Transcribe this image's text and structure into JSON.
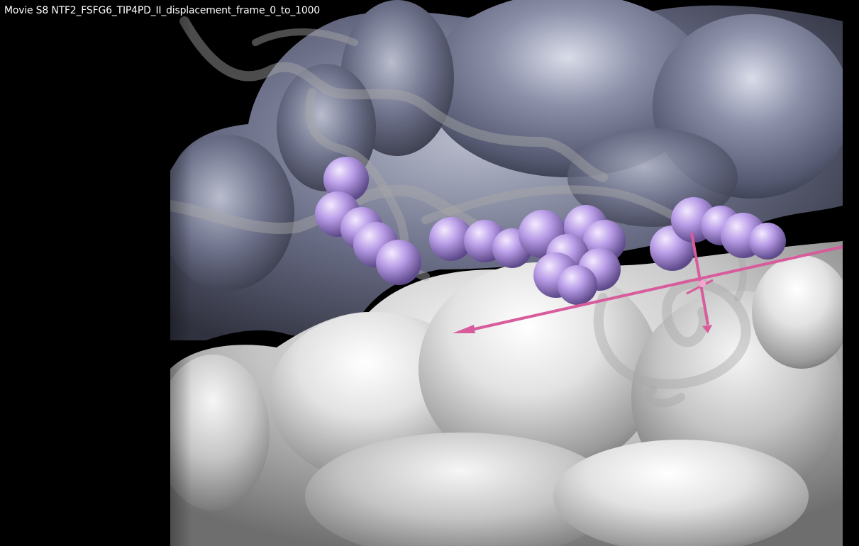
{
  "player": {
    "title": "Movie S8 NTF2_FSFG6_TIP4PD_II_displacement_frame_0_to_1000"
  },
  "scene": {
    "colors": {
      "background": "#000000",
      "surface_dark": "#6a6e86",
      "surface_light": "#d8d8d8",
      "beads": "#b79ce6",
      "arrow": "#d85b9c",
      "tube": "#9a9a9a"
    }
  }
}
